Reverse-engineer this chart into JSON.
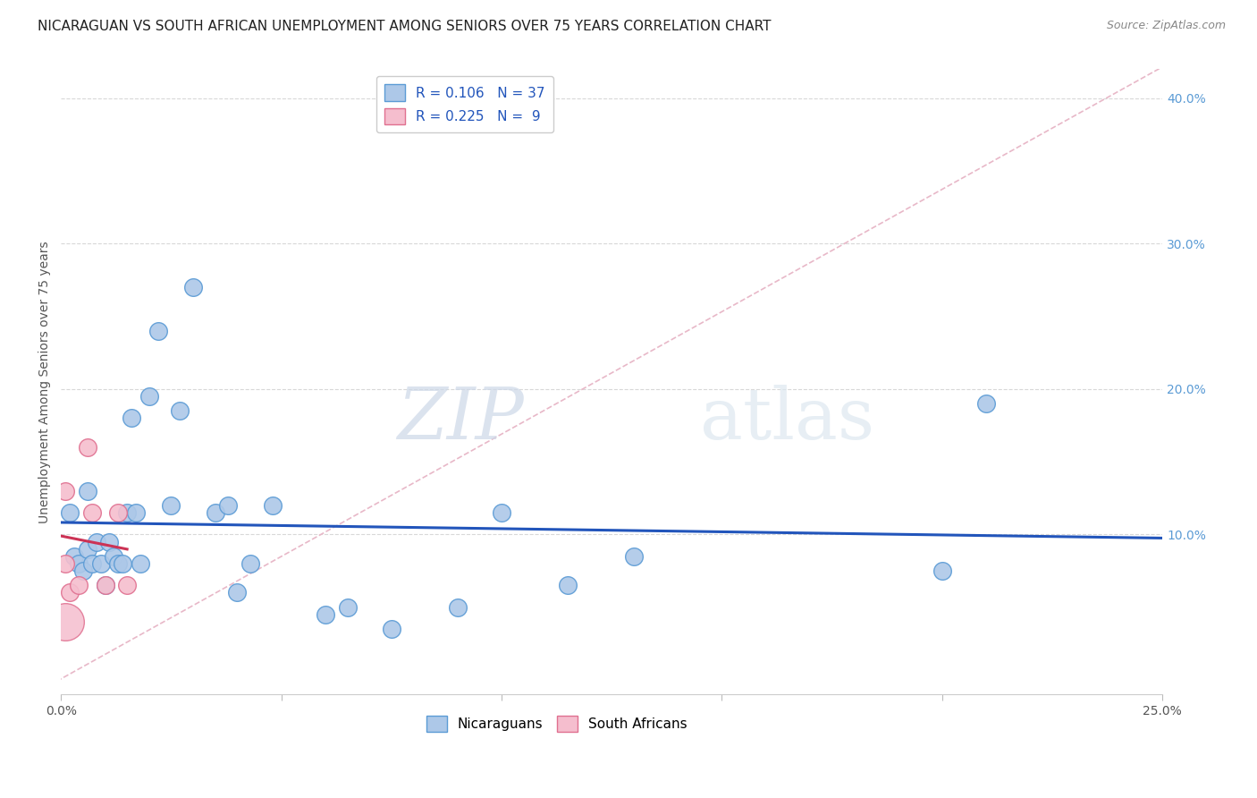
{
  "title": "NICARAGUAN VS SOUTH AFRICAN UNEMPLOYMENT AMONG SENIORS OVER 75 YEARS CORRELATION CHART",
  "source": "Source: ZipAtlas.com",
  "ylabel": "Unemployment Among Seniors over 75 years",
  "xlim": [
    0,
    0.25
  ],
  "ylim": [
    -0.01,
    0.42
  ],
  "y_ticks_right": [
    0.1,
    0.2,
    0.3,
    0.4
  ],
  "y_tick_labels_right": [
    "10.0%",
    "20.0%",
    "30.0%",
    "40.0%"
  ],
  "nicaraguan_color": "#adc8e8",
  "nicaraguan_edge_color": "#5b9bd5",
  "south_african_color": "#f5bece",
  "south_african_edge_color": "#e07090",
  "blue_line_color": "#2255bb",
  "pink_line_color": "#cc3355",
  "diagonal_color": "#e8b8c8",
  "grid_color": "#d8d8d8",
  "watermark_zip": "ZIP",
  "watermark_atlas": "atlas",
  "legend_R_nicaraguan": "R = 0.106",
  "legend_N_nicaraguan": "N = 37",
  "legend_R_south_african": "R = 0.225",
  "legend_N_south_african": "N =  9",
  "legend_label_nicaraguan": "Nicaraguans",
  "legend_label_south_african": "South Africans",
  "nicaraguan_x": [
    0.002,
    0.003,
    0.004,
    0.005,
    0.006,
    0.006,
    0.007,
    0.008,
    0.009,
    0.01,
    0.011,
    0.012,
    0.013,
    0.014,
    0.015,
    0.016,
    0.017,
    0.018,
    0.02,
    0.022,
    0.025,
    0.027,
    0.03,
    0.035,
    0.038,
    0.04,
    0.043,
    0.048,
    0.06,
    0.065,
    0.075,
    0.09,
    0.1,
    0.115,
    0.13,
    0.2,
    0.21
  ],
  "nicaraguan_y": [
    0.115,
    0.085,
    0.08,
    0.075,
    0.09,
    0.13,
    0.08,
    0.095,
    0.08,
    0.065,
    0.095,
    0.085,
    0.08,
    0.08,
    0.115,
    0.18,
    0.115,
    0.08,
    0.195,
    0.24,
    0.12,
    0.185,
    0.27,
    0.115,
    0.12,
    0.06,
    0.08,
    0.12,
    0.045,
    0.05,
    0.035,
    0.05,
    0.115,
    0.065,
    0.085,
    0.075,
    0.19
  ],
  "south_african_x": [
    0.001,
    0.001,
    0.002,
    0.004,
    0.006,
    0.007,
    0.01,
    0.013,
    0.015
  ],
  "south_african_y": [
    0.08,
    0.13,
    0.06,
    0.065,
    0.16,
    0.115,
    0.065,
    0.115,
    0.065
  ],
  "south_african_big_x": [
    0.001
  ],
  "south_african_big_y": [
    0.06
  ],
  "bg_color": "#ffffff",
  "title_color": "#222222",
  "title_fontsize": 11,
  "axis_label_color": "#555555",
  "right_tick_color": "#5b9bd5",
  "bottom_tick_color": "#555555",
  "point_size": 200,
  "big_point_size": 900
}
